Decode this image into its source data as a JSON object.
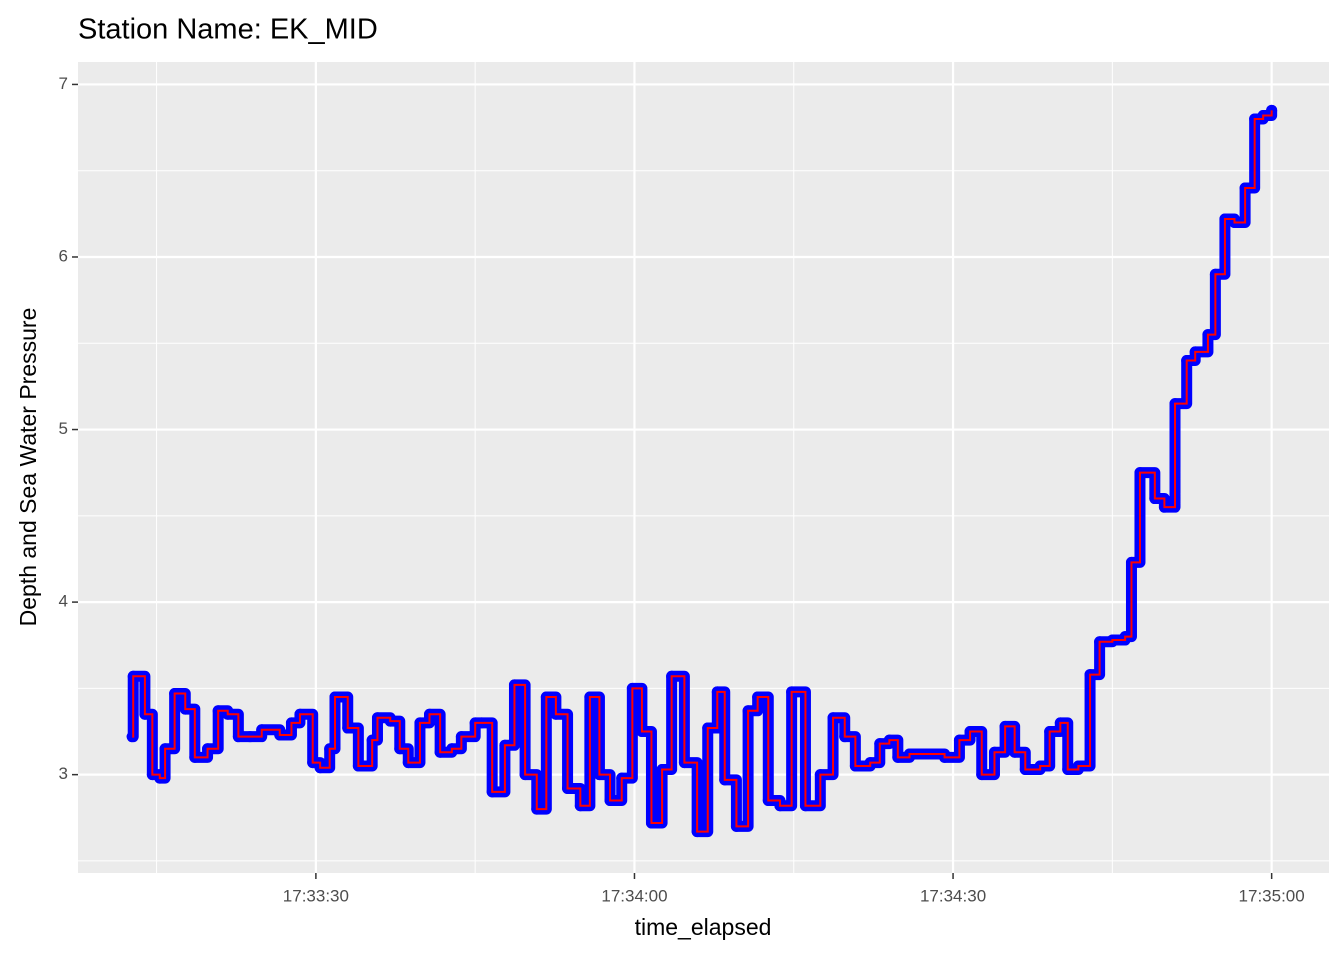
{
  "chart_data": {
    "type": "step",
    "title": "Station Name: EK_MID",
    "xlabel": "time_elapsed",
    "ylabel": "Depth and Sea Water Pressure",
    "x": [
      "17:33:12.7",
      "17:33:12.8",
      "17:33:13.9",
      "17:33:14.6",
      "17:33:15.3",
      "17:33:15.8",
      "17:33:16.7",
      "17:33:17.7",
      "17:33:18.6",
      "17:33:19.8",
      "17:33:20.8",
      "17:33:21.7",
      "17:33:22.7",
      "17:33:23.8",
      "17:33:24.9",
      "17:33:26.6",
      "17:33:27.7",
      "17:33:28.5",
      "17:33:29.7",
      "17:33:30.4",
      "17:33:31.3",
      "17:33:31.8",
      "17:33:33.0",
      "17:33:34.0",
      "17:33:35.3",
      "17:33:35.8",
      "17:33:37.0",
      "17:33:37.9",
      "17:33:38.7",
      "17:33:39.8",
      "17:33:40.7",
      "17:33:41.7",
      "17:33:42.8",
      "17:33:43.7",
      "17:33:45.0",
      "17:33:45.6",
      "17:33:46.6",
      "17:33:47.8",
      "17:33:48.7",
      "17:33:49.7",
      "17:33:50.8",
      "17:33:51.7",
      "17:33:52.6",
      "17:33:53.7",
      "17:33:54.9",
      "17:33:55.8",
      "17:33:56.7",
      "17:33:57.7",
      "17:33:58.8",
      "17:33:59.8",
      "17:34:00.7",
      "17:34:01.6",
      "17:34:02.6",
      "17:34:03.5",
      "17:34:04.7",
      "17:34:05.9",
      "17:34:06.9",
      "17:34:07.8",
      "17:34:08.5",
      "17:34:09.6",
      "17:34:10.7",
      "17:34:11.6",
      "17:34:12.6",
      "17:34:13.7",
      "17:34:14.8",
      "17:34:16.1",
      "17:34:17.5",
      "17:34:18.7",
      "17:34:19.8",
      "17:34:20.8",
      "17:34:22.2",
      "17:34:23.1",
      "17:34:24.0",
      "17:34:24.8",
      "17:34:25.9",
      "17:34:27.8",
      "17:34:29.2",
      "17:34:30.6",
      "17:34:31.6",
      "17:34:32.7",
      "17:34:33.9",
      "17:34:34.9",
      "17:34:35.8",
      "17:34:36.8",
      "17:34:38.2",
      "17:34:39.1",
      "17:34:40.1",
      "17:34:40.8",
      "17:34:41.8",
      "17:34:42.9",
      "17:34:43.8",
      "17:34:45.0",
      "17:34:46.2",
      "17:34:46.8",
      "17:34:47.6",
      "17:34:49.0",
      "17:34:49.9",
      "17:34:50.9",
      "17:34:52.0",
      "17:34:52.8",
      "17:34:54.0",
      "17:34:54.7",
      "17:34:55.6",
      "17:34:56.5",
      "17:34:57.5",
      "17:34:58.4",
      "17:34:59.2",
      "17:35:00.0"
    ],
    "values": [
      3.22,
      3.57,
      3.35,
      3.0,
      2.98,
      3.15,
      3.47,
      3.38,
      3.1,
      3.15,
      3.37,
      3.35,
      3.22,
      3.22,
      3.26,
      3.23,
      3.3,
      3.35,
      3.07,
      3.04,
      3.15,
      3.45,
      3.27,
      3.05,
      3.2,
      3.33,
      3.31,
      3.15,
      3.07,
      3.3,
      3.35,
      3.13,
      3.15,
      3.22,
      3.3,
      3.3,
      2.9,
      3.17,
      3.52,
      3.0,
      2.8,
      3.45,
      3.35,
      2.92,
      2.82,
      3.45,
      3.0,
      2.85,
      2.98,
      3.5,
      3.25,
      2.72,
      3.03,
      3.57,
      3.07,
      2.67,
      3.27,
      3.48,
      2.97,
      2.7,
      3.37,
      3.45,
      2.85,
      2.82,
      3.48,
      2.82,
      3.0,
      3.33,
      3.22,
      3.05,
      3.07,
      3.18,
      3.2,
      3.1,
      3.12,
      3.12,
      3.1,
      3.2,
      3.25,
      3.0,
      3.13,
      3.28,
      3.13,
      3.03,
      3.05,
      3.25,
      3.3,
      3.03,
      3.05,
      3.58,
      3.77,
      3.78,
      3.8,
      4.23,
      4.75,
      4.6,
      4.55,
      5.15,
      5.4,
      5.45,
      5.55,
      5.9,
      6.22,
      6.2,
      6.4,
      6.8,
      6.82,
      6.85
    ],
    "color": "#0000ff",
    "line_color": "#ff0000",
    "xlim": [
      "17:33:07.6",
      "17:35:05.4"
    ],
    "xticks": [
      "17:33:30",
      "17:34:00",
      "17:34:30",
      "17:35:00"
    ],
    "minor_xticks": [
      "17:33:15",
      "17:33:45",
      "17:34:15",
      "17:34:45"
    ],
    "ylim": [
      2.43,
      7.13
    ],
    "yticks": [
      3,
      4,
      5,
      6,
      7
    ],
    "minor_yticks": [
      2.5,
      3.5,
      4.5,
      5.5,
      6.5
    ],
    "grid": true
  }
}
